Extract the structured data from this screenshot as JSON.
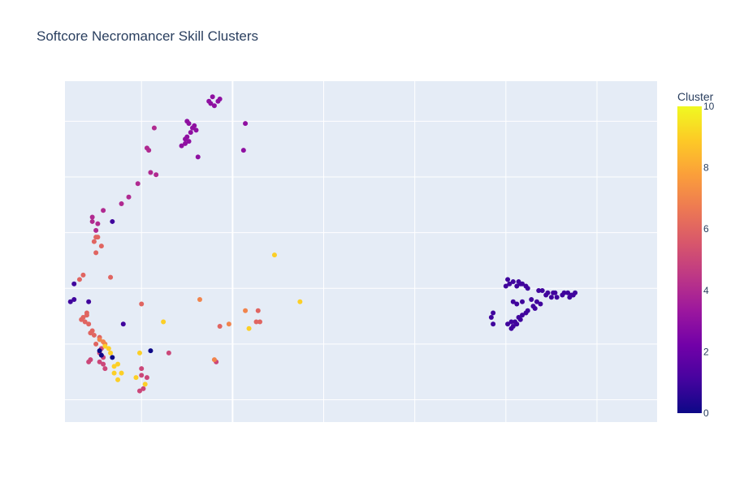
{
  "chart_data": {
    "type": "scatter",
    "title": "Softcore Necromancer Skill Clusters",
    "xlabel": "",
    "ylabel": "",
    "xlim": [
      -8.5,
      24
    ],
    "ylim": [
      -4.3,
      11
    ],
    "grid": true,
    "x_tick_labels_shown": false,
    "y_tick_labels_shown": false,
    "x_gridlines": [
      -4.3,
      0.7,
      5.7,
      10.7,
      15.7,
      20.7
    ],
    "y_gridlines": [
      -3.3,
      -0.8,
      1.7,
      4.2,
      6.7,
      9.2
    ],
    "colorbar": {
      "title": "Cluster",
      "min": 0,
      "max": 10,
      "ticks": [
        0,
        2,
        4,
        6,
        8,
        10
      ],
      "colorscale": [
        "#0d0887",
        "#46039f",
        "#7201a8",
        "#9c179e",
        "#bd3786",
        "#d8576b",
        "#ed7953",
        "#fb9f3a",
        "#fdca26",
        "#f0f921"
      ]
    },
    "points": [
      {
        "x": -0.4,
        "y": 10.3,
        "c": 3
      },
      {
        "x": -0.1,
        "y": 10.1,
        "c": 3
      },
      {
        "x": -0.5,
        "y": 10.0,
        "c": 3
      },
      {
        "x": 0.0,
        "y": 10.2,
        "c": 3
      },
      {
        "x": -0.3,
        "y": 9.9,
        "c": 3
      },
      {
        "x": -0.6,
        "y": 10.1,
        "c": 3
      },
      {
        "x": 1.4,
        "y": 9.1,
        "c": 3
      },
      {
        "x": 1.3,
        "y": 7.9,
        "c": 3
      },
      {
        "x": -1.7,
        "y": 9.1,
        "c": 3
      },
      {
        "x": -1.5,
        "y": 8.9,
        "c": 3
      },
      {
        "x": -1.3,
        "y": 8.8,
        "c": 3
      },
      {
        "x": -1.6,
        "y": 8.7,
        "c": 3
      },
      {
        "x": -1.8,
        "y": 8.5,
        "c": 3
      },
      {
        "x": -1.9,
        "y": 8.4,
        "c": 3
      },
      {
        "x": -1.7,
        "y": 8.3,
        "c": 3
      },
      {
        "x": -1.9,
        "y": 8.2,
        "c": 3
      },
      {
        "x": -2.1,
        "y": 8.1,
        "c": 3
      },
      {
        "x": -1.4,
        "y": 9.0,
        "c": 3
      },
      {
        "x": -1.8,
        "y": 9.2,
        "c": 3
      },
      {
        "x": -1.2,
        "y": 7.6,
        "c": 3
      },
      {
        "x": -3.6,
        "y": 8.9,
        "c": 4
      },
      {
        "x": -4.0,
        "y": 8.0,
        "c": 4
      },
      {
        "x": -3.9,
        "y": 7.9,
        "c": 4
      },
      {
        "x": -3.8,
        "y": 6.9,
        "c": 4
      },
      {
        "x": -3.5,
        "y": 6.8,
        "c": 4
      },
      {
        "x": -4.5,
        "y": 6.4,
        "c": 4
      },
      {
        "x": -5.0,
        "y": 5.8,
        "c": 4
      },
      {
        "x": -5.4,
        "y": 5.5,
        "c": 4
      },
      {
        "x": -6.4,
        "y": 5.2,
        "c": 4
      },
      {
        "x": -7.0,
        "y": 4.9,
        "c": 4
      },
      {
        "x": -7.0,
        "y": 4.7,
        "c": 4
      },
      {
        "x": -6.7,
        "y": 4.6,
        "c": 4
      },
      {
        "x": -6.8,
        "y": 4.3,
        "c": 4
      },
      {
        "x": -5.9,
        "y": 4.7,
        "c": 1
      },
      {
        "x": -6.8,
        "y": 4.0,
        "c": 6
      },
      {
        "x": -6.7,
        "y": 4.0,
        "c": 6
      },
      {
        "x": -6.9,
        "y": 3.8,
        "c": 6
      },
      {
        "x": -6.5,
        "y": 3.6,
        "c": 6
      },
      {
        "x": -6.8,
        "y": 3.3,
        "c": 6
      },
      {
        "x": -6.0,
        "y": 2.2,
        "c": 6
      },
      {
        "x": -7.5,
        "y": 2.3,
        "c": 6
      },
      {
        "x": -7.7,
        "y": 2.1,
        "c": 6
      },
      {
        "x": -8.0,
        "y": 1.9,
        "c": 1
      },
      {
        "x": -8.2,
        "y": 1.1,
        "c": 1
      },
      {
        "x": -8.0,
        "y": 1.2,
        "c": 1
      },
      {
        "x": -7.2,
        "y": 1.1,
        "c": 1
      },
      {
        "x": -5.3,
        "y": 0.1,
        "c": 1
      },
      {
        "x": -7.3,
        "y": 0.6,
        "c": 6
      },
      {
        "x": -7.5,
        "y": 0.4,
        "c": 6
      },
      {
        "x": -7.3,
        "y": 0.5,
        "c": 6
      },
      {
        "x": -7.6,
        "y": 0.3,
        "c": 6
      },
      {
        "x": -7.4,
        "y": 0.2,
        "c": 6
      },
      {
        "x": -7.2,
        "y": 0.1,
        "c": 6
      },
      {
        "x": -7.0,
        "y": -0.2,
        "c": 6
      },
      {
        "x": -7.1,
        "y": -0.3,
        "c": 6
      },
      {
        "x": -6.9,
        "y": -0.4,
        "c": 6
      },
      {
        "x": -4.3,
        "y": 1.0,
        "c": 6
      },
      {
        "x": -6.8,
        "y": -0.8,
        "c": 6
      },
      {
        "x": -6.6,
        "y": -0.5,
        "c": 6
      },
      {
        "x": -6.6,
        "y": -0.6,
        "c": 7
      },
      {
        "x": -6.4,
        "y": -0.7,
        "c": 7
      },
      {
        "x": -6.3,
        "y": -0.8,
        "c": 7
      },
      {
        "x": -6.5,
        "y": -1.0,
        "c": 5
      },
      {
        "x": -6.6,
        "y": -1.2,
        "c": 5
      },
      {
        "x": -6.4,
        "y": -1.4,
        "c": 5
      },
      {
        "x": -6.6,
        "y": -1.6,
        "c": 5
      },
      {
        "x": -6.4,
        "y": -1.7,
        "c": 5
      },
      {
        "x": -7.1,
        "y": -1.5,
        "c": 5
      },
      {
        "x": -7.2,
        "y": -1.6,
        "c": 5
      },
      {
        "x": -6.3,
        "y": -1.9,
        "c": 5
      },
      {
        "x": -4.3,
        "y": -1.9,
        "c": 5
      },
      {
        "x": -4.3,
        "y": -2.2,
        "c": 5
      },
      {
        "x": -4.0,
        "y": -2.3,
        "c": 5
      },
      {
        "x": -4.2,
        "y": -2.8,
        "c": 5
      },
      {
        "x": -4.4,
        "y": -2.9,
        "c": 5
      },
      {
        "x": -2.8,
        "y": -1.2,
        "c": 5
      },
      {
        "x": -0.2,
        "y": -1.6,
        "c": 5
      },
      {
        "x": -6.6,
        "y": -1.1,
        "c": 0
      },
      {
        "x": -6.5,
        "y": -1.3,
        "c": 0
      },
      {
        "x": -5.9,
        "y": -1.4,
        "c": 0
      },
      {
        "x": -3.8,
        "y": -1.1,
        "c": 0
      },
      {
        "x": -6.3,
        "y": -0.9,
        "c": 9
      },
      {
        "x": -6.1,
        "y": -1.0,
        "c": 9
      },
      {
        "x": -6.0,
        "y": -1.2,
        "c": 9
      },
      {
        "x": -5.8,
        "y": -1.8,
        "c": 9
      },
      {
        "x": -5.6,
        "y": -1.7,
        "c": 9
      },
      {
        "x": -5.8,
        "y": -2.1,
        "c": 9
      },
      {
        "x": -5.4,
        "y": -2.1,
        "c": 9
      },
      {
        "x": -5.6,
        "y": -2.4,
        "c": 9
      },
      {
        "x": -4.4,
        "y": -1.2,
        "c": 9
      },
      {
        "x": -4.6,
        "y": -2.3,
        "c": 9
      },
      {
        "x": -4.1,
        "y": -2.6,
        "c": 9
      },
      {
        "x": -3.1,
        "y": 0.2,
        "c": 9
      },
      {
        "x": 1.6,
        "y": -0.1,
        "c": 9
      },
      {
        "x": 3.0,
        "y": 3.2,
        "c": 9
      },
      {
        "x": 4.4,
        "y": 1.1,
        "c": 9
      },
      {
        "x": -1.1,
        "y": 1.2,
        "c": 7
      },
      {
        "x": 0.5,
        "y": 0.1,
        "c": 7
      },
      {
        "x": 1.4,
        "y": 0.7,
        "c": 7
      },
      {
        "x": -0.3,
        "y": -1.5,
        "c": 7
      },
      {
        "x": 2.1,
        "y": 0.7,
        "c": 6
      },
      {
        "x": 2.2,
        "y": 0.2,
        "c": 6
      },
      {
        "x": 2.0,
        "y": 0.2,
        "c": 6
      },
      {
        "x": 0.0,
        "y": 0.0,
        "c": 6
      },
      {
        "x": 15.8,
        "y": 2.1,
        "c": 1
      },
      {
        "x": 16.1,
        "y": 2.0,
        "c": 1
      },
      {
        "x": 15.9,
        "y": 1.9,
        "c": 1
      },
      {
        "x": 16.3,
        "y": 1.8,
        "c": 1
      },
      {
        "x": 16.5,
        "y": 1.9,
        "c": 1
      },
      {
        "x": 15.7,
        "y": 1.8,
        "c": 1
      },
      {
        "x": 16.8,
        "y": 1.8,
        "c": 1
      },
      {
        "x": 16.9,
        "y": 1.7,
        "c": 1
      },
      {
        "x": 16.6,
        "y": 1.9,
        "c": 1
      },
      {
        "x": 16.4,
        "y": 2.0,
        "c": 1
      },
      {
        "x": 17.5,
        "y": 1.6,
        "c": 1
      },
      {
        "x": 17.7,
        "y": 1.6,
        "c": 1
      },
      {
        "x": 18.0,
        "y": 1.5,
        "c": 1
      },
      {
        "x": 18.3,
        "y": 1.5,
        "c": 1
      },
      {
        "x": 18.5,
        "y": 1.3,
        "c": 1
      },
      {
        "x": 18.9,
        "y": 1.5,
        "c": 1
      },
      {
        "x": 18.4,
        "y": 1.5,
        "c": 1
      },
      {
        "x": 18.2,
        "y": 1.3,
        "c": 1
      },
      {
        "x": 17.9,
        "y": 1.4,
        "c": 1
      },
      {
        "x": 17.1,
        "y": 1.2,
        "c": 1
      },
      {
        "x": 16.6,
        "y": 1.1,
        "c": 1
      },
      {
        "x": 16.3,
        "y": 1.0,
        "c": 1
      },
      {
        "x": 16.1,
        "y": 1.1,
        "c": 1
      },
      {
        "x": 17.4,
        "y": 1.1,
        "c": 1
      },
      {
        "x": 19.1,
        "y": 1.5,
        "c": 1
      },
      {
        "x": 19.3,
        "y": 1.4,
        "c": 1
      },
      {
        "x": 19.4,
        "y": 1.4,
        "c": 1
      },
      {
        "x": 19.5,
        "y": 1.5,
        "c": 1
      },
      {
        "x": 19.2,
        "y": 1.3,
        "c": 1
      },
      {
        "x": 18.8,
        "y": 1.4,
        "c": 1
      },
      {
        "x": 17.2,
        "y": 0.9,
        "c": 1
      },
      {
        "x": 17.3,
        "y": 0.8,
        "c": 1
      },
      {
        "x": 17.6,
        "y": 1.0,
        "c": 1
      },
      {
        "x": 16.9,
        "y": 0.7,
        "c": 1
      },
      {
        "x": 16.8,
        "y": 0.6,
        "c": 1
      },
      {
        "x": 16.6,
        "y": 0.5,
        "c": 1
      },
      {
        "x": 16.4,
        "y": 0.4,
        "c": 1
      },
      {
        "x": 16.5,
        "y": 0.3,
        "c": 1
      },
      {
        "x": 16.2,
        "y": 0.2,
        "c": 1
      },
      {
        "x": 16.3,
        "y": 0.1,
        "c": 1
      },
      {
        "x": 16.1,
        "y": 0.0,
        "c": 1
      },
      {
        "x": 16.0,
        "y": -0.1,
        "c": 1
      },
      {
        "x": 15.8,
        "y": 0.1,
        "c": 1
      },
      {
        "x": 16.0,
        "y": 0.2,
        "c": 1
      },
      {
        "x": 15.0,
        "y": 0.6,
        "c": 1
      },
      {
        "x": 14.9,
        "y": 0.4,
        "c": 1
      },
      {
        "x": 15.0,
        "y": 0.1,
        "c": 1
      }
    ]
  }
}
